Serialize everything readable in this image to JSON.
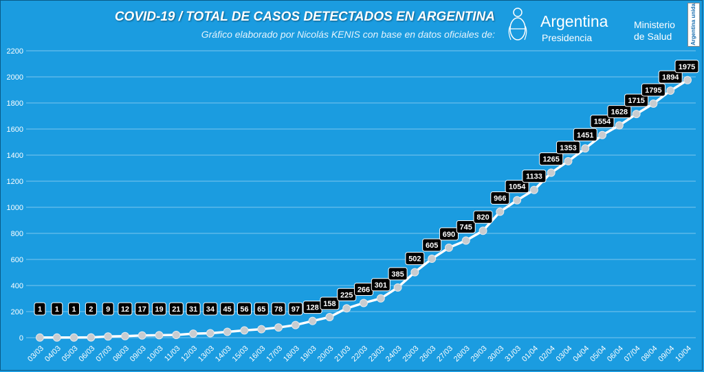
{
  "header": {
    "title": "COVID-19  /  TOTAL DE CASOS DETECTADOS EN ARGENTINA",
    "subtitle": "Gráfico elaborado por Nicolás KENIS con base en datos oficiales de:",
    "gov_name": "Argentina",
    "gov_sub": "Presidencia",
    "ministry_line1": "Ministerio",
    "ministry_line2": "de Salud",
    "stamp": "Argentina unida"
  },
  "colors": {
    "background": "#1b9ce0",
    "line": "#ffffff",
    "marker": "#c8ccd0",
    "label_box": "#000000",
    "gridline": "#7cc6ee"
  },
  "chart_data": {
    "type": "line",
    "title": "COVID-19  /  TOTAL DE CASOS DETECTADOS EN ARGENTINA",
    "xlabel": "",
    "ylabel": "",
    "ylim": [
      0,
      2200
    ],
    "yticks": [
      0,
      200,
      400,
      600,
      800,
      1000,
      1200,
      1400,
      1600,
      1800,
      2000,
      2200
    ],
    "grid": true,
    "categories": [
      "03/03",
      "04/03",
      "05/03",
      "06/03",
      "07/03",
      "08/03",
      "09/03",
      "10/03",
      "11/03",
      "12/03",
      "13/03",
      "14/03",
      "15/03",
      "16/03",
      "17/03",
      "18/03",
      "19/03",
      "20/03",
      "21/03",
      "22/03",
      "23/03",
      "24/03",
      "25/03",
      "26/03",
      "27/03",
      "28/03",
      "29/03",
      "30/03",
      "31/03",
      "01/04",
      "02/04",
      "03/04",
      "04/04",
      "05/04",
      "06/04",
      "07/04",
      "08/04",
      "09/04",
      "10/04"
    ],
    "series": [
      {
        "values": [
          1,
          1,
          1,
          2,
          9,
          12,
          17,
          19,
          21,
          31,
          34,
          45,
          56,
          65,
          78,
          97,
          128,
          158,
          225,
          266,
          301,
          385,
          502,
          605,
          690,
          745,
          820,
          966,
          1054,
          1133,
          1265,
          1353,
          1451,
          1554,
          1628,
          1715,
          1795,
          1894,
          1975
        ]
      }
    ]
  }
}
